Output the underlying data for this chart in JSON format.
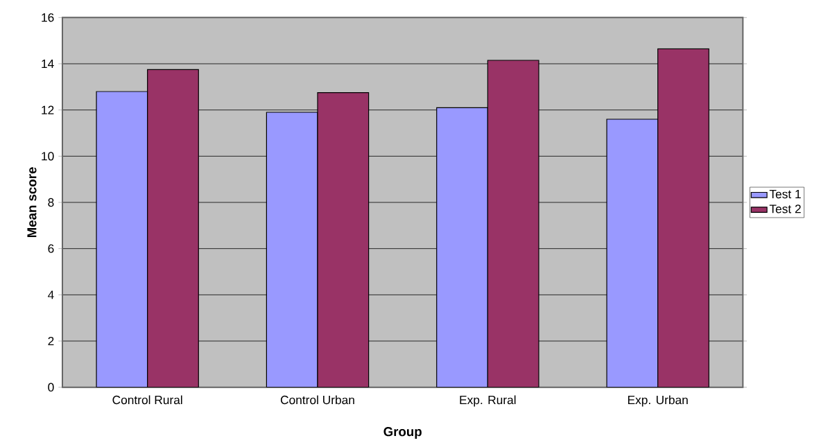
{
  "chart_data": {
    "type": "bar",
    "xlabel": "Group",
    "ylabel": "Mean score",
    "categories": [
      "Control Rural",
      "Control Urban",
      "Exp. Rural",
      "Exp. Urban"
    ],
    "series": [
      {
        "name": "Test 1",
        "color": "#9999ff",
        "values": [
          12.8,
          11.9,
          12.1,
          11.6
        ]
      },
      {
        "name": "Test 2",
        "color": "#993366",
        "values": [
          13.75,
          12.75,
          14.15,
          14.65
        ]
      }
    ],
    "ylim": [
      0,
      16
    ],
    "yticks": [
      0,
      2,
      4,
      6,
      8,
      10,
      12,
      14,
      16
    ],
    "grid": "y",
    "legend": "right"
  }
}
